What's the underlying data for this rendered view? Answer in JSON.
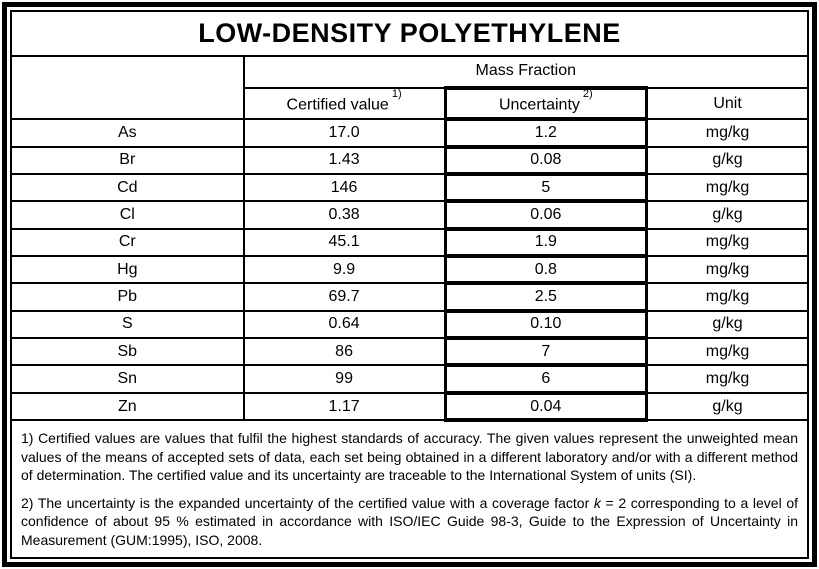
{
  "page": {
    "background_color": "#ffffff",
    "border_color": "#000000",
    "text_color": "#000000"
  },
  "title": "LOW-DENSITY POLYETHYLENE",
  "table": {
    "group_header": "Mass Fraction",
    "columns": {
      "certified_value": {
        "label": "Certified value",
        "sup": "1)"
      },
      "uncertainty": {
        "label": "Uncertainty",
        "sup": "2)"
      },
      "unit": {
        "label": "Unit"
      }
    },
    "rows": [
      {
        "element": "As",
        "certified_value": "17.0",
        "uncertainty": "1.2",
        "unit": "mg/kg"
      },
      {
        "element": "Br",
        "certified_value": "1.43",
        "uncertainty": "0.08",
        "unit": "g/kg"
      },
      {
        "element": "Cd",
        "certified_value": "146",
        "uncertainty": "5",
        "unit": "mg/kg"
      },
      {
        "element": "Cl",
        "certified_value": "0.38",
        "uncertainty": "0.06",
        "unit": "g/kg"
      },
      {
        "element": "Cr",
        "certified_value": "45.1",
        "uncertainty": "1.9",
        "unit": "mg/kg"
      },
      {
        "element": "Hg",
        "certified_value": "9.9",
        "uncertainty": "0.8",
        "unit": "mg/kg"
      },
      {
        "element": "Pb",
        "certified_value": "69.7",
        "uncertainty": "2.5",
        "unit": "mg/kg"
      },
      {
        "element": "S",
        "certified_value": "0.64",
        "uncertainty": "0.10",
        "unit": "g/kg"
      },
      {
        "element": "Sb",
        "certified_value": "86",
        "uncertainty": "7",
        "unit": "mg/kg"
      },
      {
        "element": "Sn",
        "certified_value": "99",
        "uncertainty": "6",
        "unit": "mg/kg"
      },
      {
        "element": "Zn",
        "certified_value": "1.17",
        "uncertainty": "0.04",
        "unit": "g/kg"
      }
    ]
  },
  "footnotes": {
    "note1": "1) Certified values are values that fulfil the highest standards of accuracy. The given values represent the unweighted mean values of the means of accepted sets of data, each set being obtained in a different laboratory and/or with a different method of determination. The certified value and its uncertainty are traceable to the International System of units (SI).",
    "note2_pre": "2) The uncertainty is the expanded uncertainty of the certified value with a coverage factor ",
    "note2_k": "k",
    "note2_post": " = 2 corresponding to a level of confidence of about 95 % estimated in accordance with ISO/IEC Guide 98-3, Guide to the Expression of Uncertainty in Measurement (GUM:1995), ISO, 2008."
  }
}
